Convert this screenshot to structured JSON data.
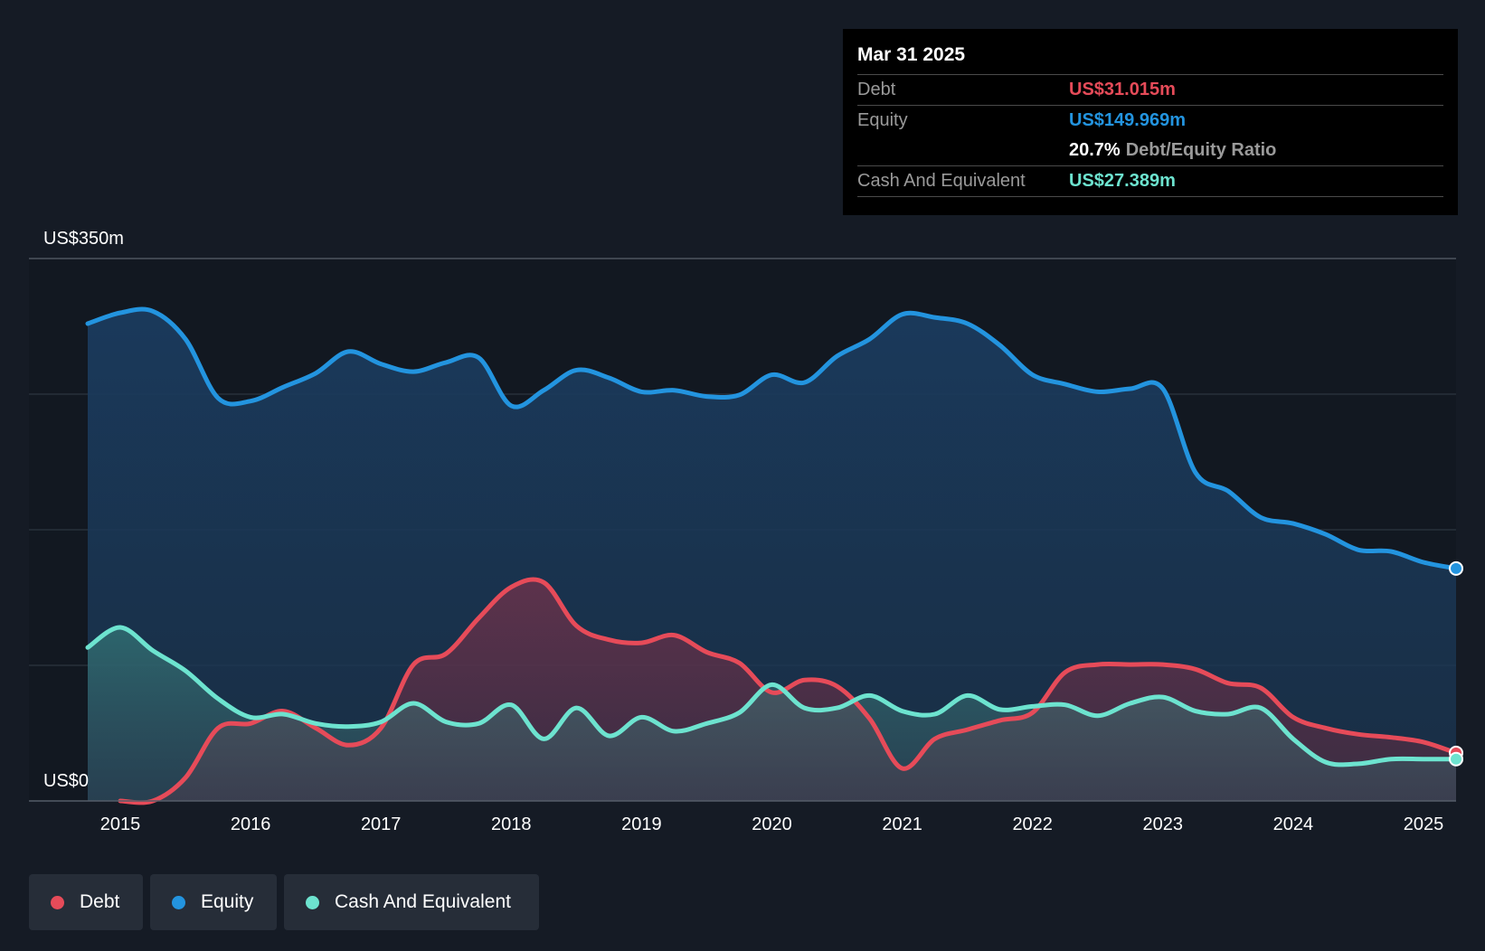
{
  "tooltip": {
    "date": "Mar 31 2025",
    "debt_label": "Debt",
    "debt_value": "US$31.015m",
    "equity_label": "Equity",
    "equity_value": "US$149.969m",
    "ratio_value": "20.7%",
    "ratio_label": "Debt/Equity Ratio",
    "cash_label": "Cash And Equivalent",
    "cash_value": "US$27.389m"
  },
  "legend": {
    "debt": "Debt",
    "equity": "Equity",
    "cash": "Cash And Equivalent"
  },
  "colors": {
    "background": "#151b25",
    "plot_background": "#121821",
    "debt": "#e64b59",
    "equity": "#2394df",
    "cash": "#6de3cf",
    "grid": "#2c3440",
    "legend_bg": "#262d38"
  },
  "chart_data": {
    "type": "area",
    "title": "",
    "xlabel": "",
    "ylabel": "",
    "y_max_label": "US$350m",
    "y_min_label": "US$0",
    "ylim": [
      0,
      350
    ],
    "xlim": [
      2014.75,
      2025.25
    ],
    "x_ticks": [
      "2015",
      "2016",
      "2017",
      "2018",
      "2019",
      "2020",
      "2021",
      "2022",
      "2023",
      "2024",
      "2025"
    ],
    "series": [
      {
        "name": "Equity",
        "points": [
          [
            2014.75,
            308
          ],
          [
            2015.0,
            315
          ],
          [
            2015.25,
            316
          ],
          [
            2015.5,
            298
          ],
          [
            2015.75,
            260
          ],
          [
            2016.0,
            258
          ],
          [
            2016.25,
            267
          ],
          [
            2016.5,
            276
          ],
          [
            2016.75,
            290
          ],
          [
            2017.0,
            282
          ],
          [
            2017.25,
            277
          ],
          [
            2017.5,
            283
          ],
          [
            2017.75,
            286
          ],
          [
            2018.0,
            255
          ],
          [
            2018.25,
            265
          ],
          [
            2018.5,
            278
          ],
          [
            2018.75,
            273
          ],
          [
            2019.0,
            264
          ],
          [
            2019.25,
            265
          ],
          [
            2019.5,
            261
          ],
          [
            2019.75,
            262
          ],
          [
            2020.0,
            275
          ],
          [
            2020.25,
            270
          ],
          [
            2020.5,
            287
          ],
          [
            2020.75,
            298
          ],
          [
            2021.0,
            314
          ],
          [
            2021.25,
            312
          ],
          [
            2021.5,
            308
          ],
          [
            2021.75,
            294
          ],
          [
            2022.0,
            275
          ],
          [
            2022.25,
            269
          ],
          [
            2022.5,
            264
          ],
          [
            2022.75,
            266
          ],
          [
            2023.0,
            266
          ],
          [
            2023.25,
            212
          ],
          [
            2023.5,
            200
          ],
          [
            2023.75,
            183
          ],
          [
            2024.0,
            179
          ],
          [
            2024.25,
            172
          ],
          [
            2024.5,
            162
          ],
          [
            2024.75,
            161
          ],
          [
            2025.0,
            154
          ],
          [
            2025.25,
            150
          ]
        ]
      },
      {
        "name": "Debt",
        "points": [
          [
            2015.0,
            0
          ],
          [
            2015.25,
            0
          ],
          [
            2015.5,
            15
          ],
          [
            2015.75,
            47
          ],
          [
            2016.0,
            50
          ],
          [
            2016.25,
            58
          ],
          [
            2016.5,
            47
          ],
          [
            2016.75,
            36
          ],
          [
            2017.0,
            47
          ],
          [
            2017.25,
            88
          ],
          [
            2017.5,
            95
          ],
          [
            2017.75,
            118
          ],
          [
            2018.0,
            138
          ],
          [
            2018.25,
            141
          ],
          [
            2018.5,
            113
          ],
          [
            2018.75,
            104
          ],
          [
            2019.0,
            102
          ],
          [
            2019.25,
            107
          ],
          [
            2019.5,
            96
          ],
          [
            2019.75,
            89
          ],
          [
            2020.0,
            70
          ],
          [
            2020.25,
            78
          ],
          [
            2020.5,
            74
          ],
          [
            2020.75,
            53
          ],
          [
            2021.0,
            21
          ],
          [
            2021.25,
            40
          ],
          [
            2021.5,
            46
          ],
          [
            2021.75,
            52
          ],
          [
            2022.0,
            57
          ],
          [
            2022.25,
            83
          ],
          [
            2022.5,
            88
          ],
          [
            2022.75,
            88
          ],
          [
            2023.0,
            88
          ],
          [
            2023.25,
            85
          ],
          [
            2023.5,
            76
          ],
          [
            2023.75,
            73
          ],
          [
            2024.0,
            54
          ],
          [
            2024.25,
            47
          ],
          [
            2024.5,
            43
          ],
          [
            2024.75,
            41
          ],
          [
            2025.0,
            38
          ],
          [
            2025.25,
            31
          ]
        ]
      },
      {
        "name": "Cash And Equivalent",
        "points": [
          [
            2014.75,
            99
          ],
          [
            2015.0,
            112
          ],
          [
            2015.25,
            97
          ],
          [
            2015.5,
            84
          ],
          [
            2015.75,
            66
          ],
          [
            2016.0,
            54
          ],
          [
            2016.25,
            56
          ],
          [
            2016.5,
            50
          ],
          [
            2016.75,
            48
          ],
          [
            2017.0,
            51
          ],
          [
            2017.25,
            63
          ],
          [
            2017.5,
            51
          ],
          [
            2017.75,
            50
          ],
          [
            2018.0,
            62
          ],
          [
            2018.25,
            40
          ],
          [
            2018.5,
            60
          ],
          [
            2018.75,
            42
          ],
          [
            2019.0,
            54
          ],
          [
            2019.25,
            45
          ],
          [
            2019.5,
            50
          ],
          [
            2019.75,
            57
          ],
          [
            2020.0,
            75
          ],
          [
            2020.25,
            60
          ],
          [
            2020.5,
            60
          ],
          [
            2020.75,
            68
          ],
          [
            2021.0,
            58
          ],
          [
            2021.25,
            56
          ],
          [
            2021.5,
            68
          ],
          [
            2021.75,
            59
          ],
          [
            2022.0,
            61
          ],
          [
            2022.25,
            62
          ],
          [
            2022.5,
            55
          ],
          [
            2022.75,
            63
          ],
          [
            2023.0,
            67
          ],
          [
            2023.25,
            58
          ],
          [
            2023.5,
            56
          ],
          [
            2023.75,
            60
          ],
          [
            2024.0,
            40
          ],
          [
            2024.25,
            25
          ],
          [
            2024.5,
            24
          ],
          [
            2024.75,
            27
          ],
          [
            2025.0,
            27
          ],
          [
            2025.25,
            27
          ]
        ]
      }
    ]
  }
}
